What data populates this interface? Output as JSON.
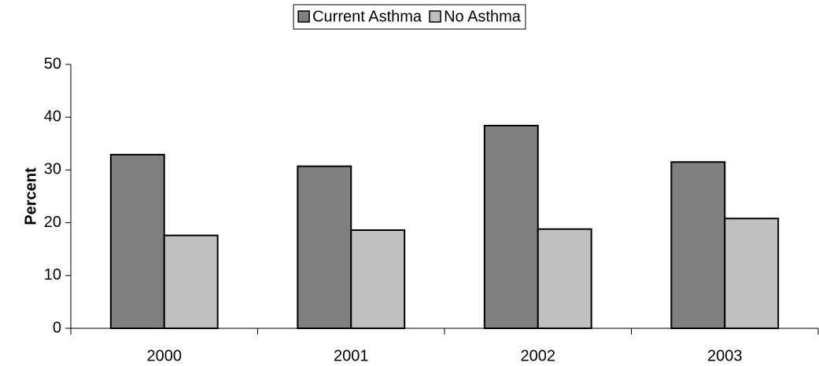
{
  "chart_data": {
    "type": "bar",
    "y_label": "Percent",
    "categories": [
      "2000",
      "2001",
      "2002",
      "2003"
    ],
    "series": [
      {
        "name": "Current Asthma",
        "color": "#808080",
        "values": [
          32.9,
          30.7,
          38.4,
          31.5
        ]
      },
      {
        "name": "No Asthma",
        "color": "#c0c0c0",
        "values": [
          17.6,
          18.6,
          18.8,
          20.8
        ]
      }
    ],
    "ylim": [
      0,
      50
    ],
    "yticks": [
      0,
      10,
      20,
      30,
      40,
      50
    ],
    "legend": "top"
  }
}
